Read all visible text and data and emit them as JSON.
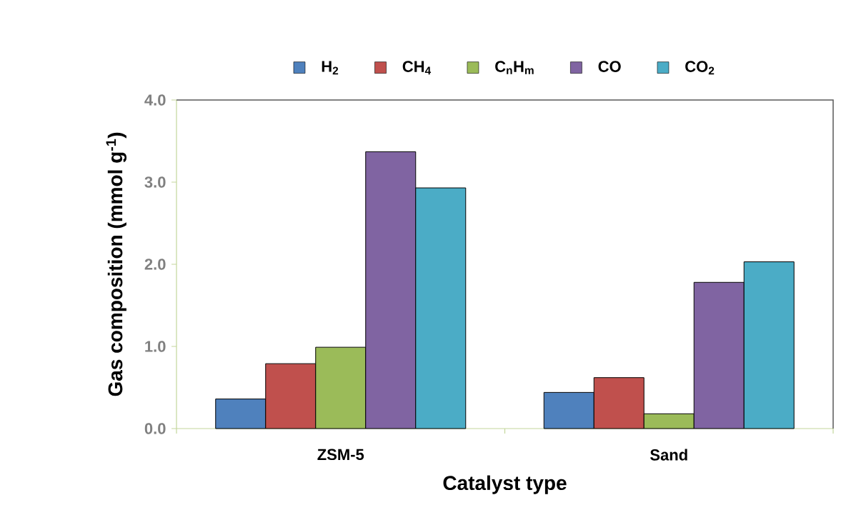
{
  "chart_data": {
    "type": "bar",
    "xlabel": "Catalyst type",
    "ylabel": "Gas composition (mmol g$^{-1}$)",
    "categories": [
      "ZSM-5",
      "Sand"
    ],
    "series": [
      {
        "name": "H$_{2}$",
        "color": "#4f81bd",
        "values": [
          0.36,
          0.44
        ]
      },
      {
        "name": "CH$_{4}$",
        "color": "#c0504d",
        "values": [
          0.79,
          0.62
        ]
      },
      {
        "name": "C$_{n}$H$_{m}$",
        "color": "#9bbb59",
        "values": [
          0.99,
          0.18
        ]
      },
      {
        "name": "CO",
        "color": "#8064a2",
        "values": [
          3.37,
          1.78
        ]
      },
      {
        "name": "CO$_{2}$",
        "color": "#4bacc6",
        "values": [
          2.93,
          2.03
        ]
      }
    ],
    "ylim": [
      0,
      4
    ],
    "yticks": [
      {
        "value": 0,
        "label": "0.0"
      },
      {
        "value": 1,
        "label": "1.0"
      },
      {
        "value": 2,
        "label": "2.0"
      },
      {
        "value": 3,
        "label": "3.0"
      },
      {
        "value": 4,
        "label": "4.0"
      }
    ],
    "grid": false,
    "legend": "top"
  }
}
